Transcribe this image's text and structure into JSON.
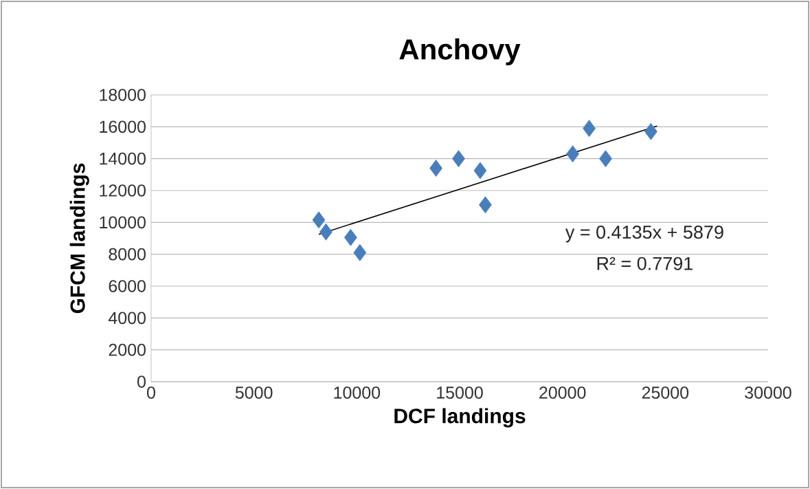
{
  "chart_data": {
    "type": "scatter",
    "title": "Anchovy",
    "xlabel": "DCF landings",
    "ylabel": "GFCM landings",
    "series": [
      {
        "color": "#4a7ebb",
        "marker": "diamond",
        "x": [
          8150,
          8500,
          9700,
          10150,
          13850,
          14950,
          16000,
          16250,
          20500,
          21300,
          22100,
          24300
        ],
        "values": [
          10150,
          9400,
          9050,
          8100,
          13400,
          14000,
          13250,
          11100,
          14300,
          15900,
          14000,
          15700
        ]
      },
      {
        "type": "line",
        "color": "#000000",
        "marker": "none",
        "x": [
          8150,
          24600
        ],
        "values": [
          9250,
          16050
        ]
      }
    ],
    "annotations": [
      "y = 0.4135x + 5879",
      "R² = 0.7791"
    ],
    "xlim": [
      0,
      30000
    ],
    "xticks": [
      0,
      5000,
      10000,
      15000,
      20000,
      25000,
      30000
    ],
    "ylim": [
      0,
      18000
    ],
    "yticks": [
      0,
      2000,
      4000,
      6000,
      8000,
      10000,
      12000,
      14000,
      16000,
      18000
    ],
    "grid": "y"
  }
}
